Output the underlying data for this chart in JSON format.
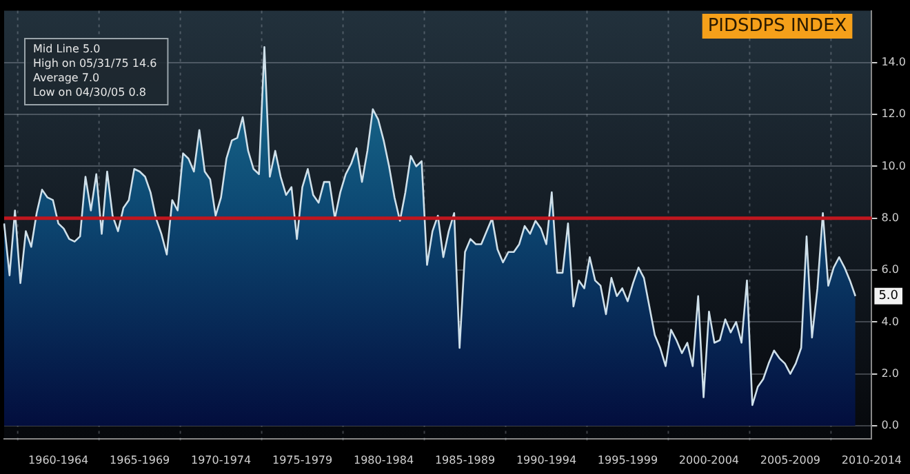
{
  "chart_data": {
    "type": "area",
    "title": "PIDSDPS INDEX",
    "annotations": [
      "Mid Line 5.0",
      "High on 05/31/75 14.6",
      "Average 7.0",
      "Low on 04/30/05 0.8",
      {
        "text": "5.0",
        "y": 5.0
      }
    ],
    "categories": [
      null,
      null,
      null,
      null,
      null,
      null,
      null,
      null,
      null,
      null,
      "1960-1964",
      null,
      null,
      null,
      null,
      null,
      null,
      null,
      null,
      null,
      null,
      null,
      null,
      null,
      null,
      "1965-1969",
      null,
      null,
      null,
      null,
      null,
      null,
      null,
      null,
      null,
      null,
      null,
      null,
      null,
      null,
      "1970-1974",
      null,
      null,
      null,
      null,
      null,
      null,
      null,
      null,
      null,
      null,
      null,
      null,
      null,
      null,
      "1975-1979",
      null,
      null,
      null,
      null,
      null,
      null,
      null,
      null,
      null,
      null,
      null,
      null,
      null,
      null,
      "1980-1984",
      null,
      null,
      null,
      null,
      null,
      null,
      null,
      null,
      null,
      null,
      null,
      null,
      null,
      null,
      "1985-1989",
      null,
      null,
      null,
      null,
      null,
      null,
      null,
      null,
      null,
      null,
      null,
      null,
      null,
      null,
      "1990-1994",
      null,
      null,
      null,
      null,
      null,
      null,
      null,
      null,
      null,
      null,
      null,
      null,
      null,
      null,
      "1995-1999",
      null,
      null,
      null,
      null,
      null,
      null,
      null,
      null,
      null,
      null,
      null,
      null,
      null,
      null,
      "2000-2004",
      null,
      null,
      null,
      null,
      null,
      null,
      null,
      null,
      null,
      null,
      null,
      null,
      null,
      null,
      "2005-2009",
      null,
      null,
      null,
      null,
      null,
      null,
      null,
      null,
      null,
      null,
      null,
      null,
      null,
      null,
      "2010-2014"
    ],
    "series": [
      {
        "color": "#cfe0ea",
        "values": [
          7.8,
          5.8,
          8.3,
          5.5,
          7.5,
          6.9,
          8.2,
          9.1,
          8.8,
          8.7,
          7.8,
          7.6,
          7.2,
          7.1,
          7.3,
          9.6,
          8.3,
          9.7,
          7.4,
          9.8,
          8.1,
          7.5,
          8.4,
          8.7,
          9.9,
          9.8,
          9.6,
          9.0,
          8.0,
          7.4,
          6.6,
          8.7,
          8.3,
          10.5,
          10.3,
          9.8,
          11.4,
          9.8,
          9.5,
          8.1,
          8.8,
          10.3,
          11.0,
          11.1,
          11.9,
          10.6,
          9.9,
          9.7,
          14.6,
          9.6,
          10.6,
          9.6,
          8.9,
          9.2,
          7.2,
          9.2,
          9.9,
          8.9,
          8.6,
          9.4,
          9.4,
          8.0,
          9.0,
          9.7,
          10.1,
          10.7,
          9.4,
          10.6,
          12.2,
          11.8,
          11.0,
          10.0,
          8.8,
          7.9,
          9.0,
          10.4,
          10.0,
          10.2,
          6.2,
          7.5,
          8.1,
          6.5,
          7.5,
          8.2,
          3.0,
          6.7,
          7.2,
          7.0,
          7.0,
          7.5,
          8.0,
          6.8,
          6.3,
          6.7,
          6.7,
          7.0,
          7.7,
          7.4,
          7.9,
          7.6,
          7.0,
          9.0,
          5.9,
          5.9,
          7.8,
          4.6,
          5.6,
          5.3,
          6.5,
          5.6,
          5.4,
          4.3,
          5.7,
          5.0,
          5.3,
          4.8,
          5.5,
          6.1,
          5.7,
          4.6,
          3.5,
          3.0,
          2.3,
          3.7,
          3.3,
          2.8,
          3.2,
          2.3,
          5.0,
          1.1,
          4.4,
          3.2,
          3.3,
          4.1,
          3.6,
          4.0,
          3.2,
          5.6,
          0.8,
          1.5,
          1.8,
          2.4,
          2.9,
          2.6,
          2.4,
          2.0,
          2.4,
          3.0,
          7.3,
          3.4,
          5.3,
          8.2,
          5.4,
          6.1,
          6.5,
          6.1,
          5.6,
          5.0,
          null,
          null,
          null
        ]
      }
    ],
    "ylim": [
      -0.5,
      16
    ],
    "yticks": [
      {
        "value": 0,
        "label": "0.0"
      },
      {
        "value": 2,
        "label": "2.0"
      },
      {
        "value": 4,
        "label": "4.0"
      },
      {
        "value": 6,
        "label": "6.0"
      },
      {
        "value": 8,
        "label": "8.0"
      },
      {
        "value": 10,
        "label": "10.0"
      },
      {
        "value": 12,
        "label": "12.0"
      },
      {
        "value": 14,
        "label": "14.0"
      }
    ],
    "ref_lines": [
      {
        "axis": "y",
        "value": 8,
        "color": "#c0161e"
      }
    ],
    "grid": true,
    "marker": "none"
  }
}
